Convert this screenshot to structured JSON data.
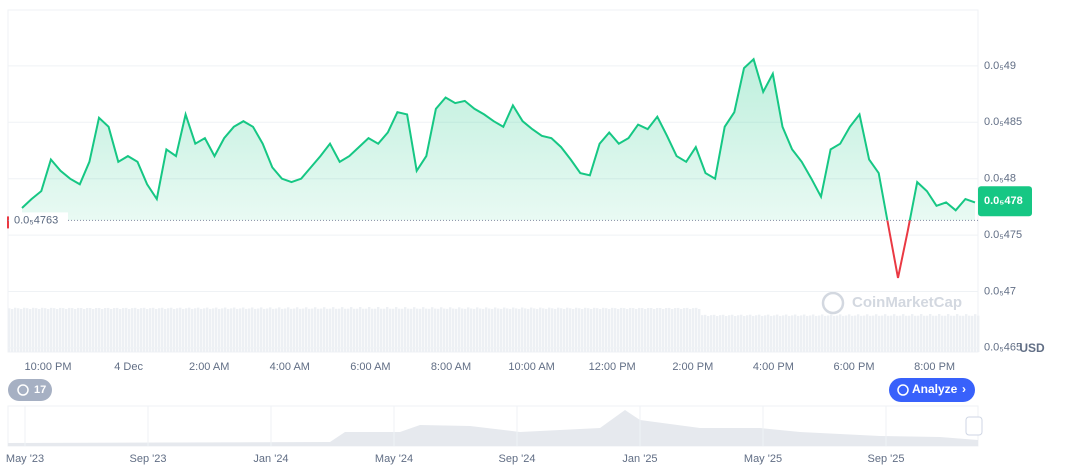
{
  "chart_data": {
    "type": "line",
    "series": [
      {
        "color": "#16c784",
        "below_color": "#ea3943",
        "values": [
          4.774e-06,
          4.782e-06,
          4.789e-06,
          4.817e-06,
          4.807e-06,
          4.8e-06,
          4.795e-06,
          4.815e-06,
          4.854e-06,
          4.846e-06,
          4.815e-06,
          4.82e-06,
          4.815e-06,
          4.795e-06,
          4.782e-06,
          4.826e-06,
          4.82e-06,
          4.857e-06,
          4.831e-06,
          4.836e-06,
          4.82e-06,
          4.836e-06,
          4.846e-06,
          4.851e-06,
          4.846e-06,
          4.831e-06,
          4.81e-06,
          4.8e-06,
          4.797e-06,
          4.8e-06,
          4.81e-06,
          4.82e-06,
          4.831e-06,
          4.815e-06,
          4.82e-06,
          4.828e-06,
          4.836e-06,
          4.831e-06,
          4.841e-06,
          4.859e-06,
          4.857e-06,
          4.807e-06,
          4.82e-06,
          4.862e-06,
          4.872e-06,
          4.867e-06,
          4.869e-06,
          4.862e-06,
          4.857e-06,
          4.851e-06,
          4.846e-06,
          4.865e-06,
          4.851e-06,
          4.844e-06,
          4.838e-06,
          4.836e-06,
          4.828e-06,
          4.817e-06,
          4.805e-06,
          4.803e-06,
          4.831e-06,
          4.841e-06,
          4.831e-06,
          4.836e-06,
          4.848e-06,
          4.844e-06,
          4.855e-06,
          4.838e-06,
          4.82e-06,
          4.815e-06,
          4.828e-06,
          4.805e-06,
          4.8e-06,
          4.846e-06,
          4.859e-06,
          4.898e-06,
          4.906e-06,
          4.877e-06,
          4.893e-06,
          4.846e-06,
          4.826e-06,
          4.815e-06,
          4.8e-06,
          4.784e-06,
          4.826e-06,
          4.831e-06,
          4.846e-06,
          4.857e-06,
          4.817e-06,
          4.805e-06,
          4.758e-06,
          4.712e-06,
          4.753e-06,
          4.797e-06,
          4.789e-06,
          4.776e-06,
          4.779e-06,
          4.772e-06,
          4.782e-06,
          4.779e-06
        ]
      }
    ],
    "ylim": [
      4.6463e-06,
      4.9496e-06
    ],
    "yticks": [
      {
        "value": 4.9e-06,
        "label": "0.0₅49"
      },
      {
        "value": 4.85e-06,
        "label": "0.0₅485"
      },
      {
        "value": 4.8e-06,
        "label": "0.0₅48"
      },
      {
        "value": 4.75e-06,
        "label": "0.0₅475"
      },
      {
        "value": 4.7e-06,
        "label": "0.0₅47"
      },
      {
        "value": 4.65e-06,
        "label": "0.0₅465"
      }
    ],
    "grid": true,
    "x_labels": [
      "10:00 PM",
      "4 Dec",
      "2:00 AM",
      "4:00 AM",
      "6:00 AM",
      "8:00 AM",
      "10:00 AM",
      "12:00 PM",
      "2:00 PM",
      "4:00 PM",
      "6:00 PM",
      "8:00 PM"
    ],
    "reference_line": {
      "value": 4.763e-06,
      "label": "0.0₅4763"
    },
    "current_price": {
      "value": 4.78e-06,
      "label": "0.0₅478"
    },
    "currency_label": "USD",
    "watermark": "CoinMarketCap",
    "navigator_labels": [
      "May '23",
      "Sep '23",
      "Jan '24",
      "May '24",
      "Sep '24",
      "Jan '25",
      "May '25",
      "Sep '25"
    ],
    "analyze_button": "Analyze",
    "history_badge": "17"
  }
}
